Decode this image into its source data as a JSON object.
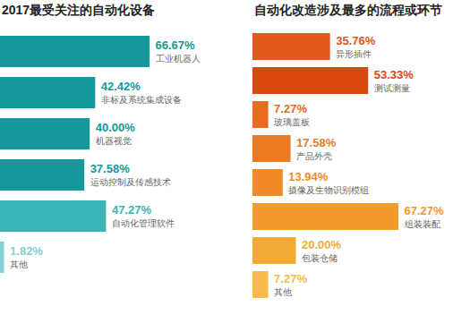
{
  "chart_data": [
    {
      "type": "bar",
      "orientation": "horizontal",
      "title": "2017最受关注的自动化设备",
      "categories": [
        "工业机器人",
        "非标及系统集成设备",
        "机器视觉",
        "运动控制及传感技术",
        "自动化管理软件",
        "其他"
      ],
      "values": [
        66.67,
        42.42,
        40.0,
        37.58,
        47.27,
        1.82
      ],
      "value_labels": [
        "66.67%",
        "42.42%",
        "40.00%",
        "37.58%",
        "47.27%",
        "1.82%"
      ],
      "colors": [
        "#16989a",
        "#16989a",
        "#16989a",
        "#16989a",
        "#3bb4b6",
        "#86d0d1"
      ],
      "data_labels": true,
      "tick_labels": false
    },
    {
      "type": "bar",
      "orientation": "horizontal",
      "title": "自动化改造涉及最多的流程或环节",
      "categories": [
        "异形插件",
        "测试测量",
        "玻璃盖板",
        "产品外壳",
        "摄像及生物识别模组",
        "组装装配",
        "包装仓储",
        "其他"
      ],
      "values": [
        35.76,
        53.33,
        7.27,
        17.58,
        13.94,
        67.27,
        20.0,
        7.27
      ],
      "value_labels": [
        "35.76%",
        "53.33%",
        "7.27%",
        "17.58%",
        "13.94%",
        "67.27%",
        "20.00%",
        "7.27%"
      ],
      "colors": [
        "#e2571c",
        "#d9480f",
        "#e86a1e",
        "#ec7a22",
        "#ef8a26",
        "#f29a2c",
        "#f4aa36",
        "#f6bb4a"
      ],
      "data_labels": true,
      "tick_labels": false
    }
  ]
}
